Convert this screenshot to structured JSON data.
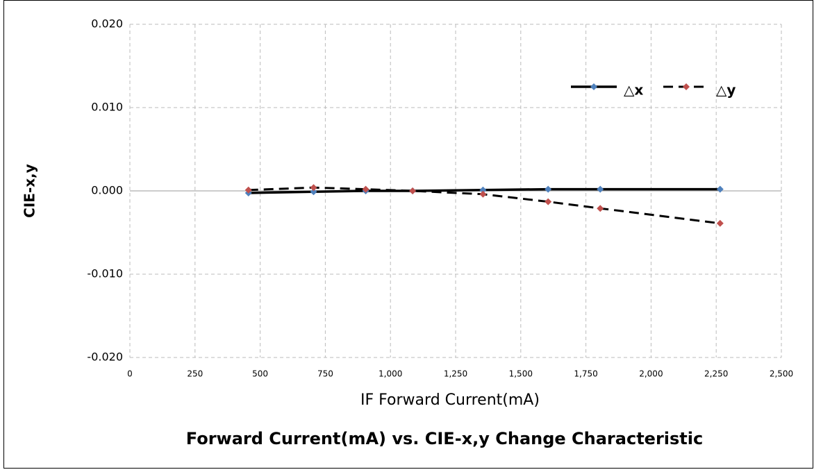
{
  "chart_data": {
    "type": "line",
    "title": "Forward Current(mA) vs. CIE-x,y Change Characteristic",
    "x_label": "IF Forward Current(mA)",
    "y_label": "CIE-x,y",
    "x": [
      455,
      705,
      905,
      1085,
      1355,
      1605,
      1805,
      2265
    ],
    "series": [
      {
        "name": "△x",
        "color": "#4f81bd",
        "line_color": "#000000",
        "line_style": "solid",
        "values": [
          -0.00025,
          -0.0001,
          0.0,
          0.0,
          0.0001,
          0.0002,
          0.0002,
          0.0002
        ]
      },
      {
        "name": "△y",
        "color": "#c0504d",
        "line_color": "#000000",
        "line_style": "dashed",
        "values": [
          0.0001,
          0.0004,
          0.0002,
          0.0,
          -0.0004,
          -0.0013,
          -0.0021,
          -0.0039
        ]
      }
    ],
    "xlim": [
      0,
      2500
    ],
    "xticks": [
      0,
      250,
      500,
      750,
      {
        "value": 1000,
        "label": "1,000"
      },
      {
        "value": 1250,
        "label": "1,250"
      },
      {
        "value": 1500,
        "label": "1,500"
      },
      {
        "value": 1750,
        "label": "1,750"
      },
      {
        "value": 2000,
        "label": "2,000"
      },
      {
        "value": 2250,
        "label": "2,250"
      },
      {
        "value": 2500,
        "label": "2,500"
      }
    ],
    "ylim": [
      -0.02,
      0.02
    ],
    "yticks": [
      {
        "value": -0.02,
        "label": "-0.020"
      },
      {
        "value": -0.01,
        "label": "-0.010"
      },
      {
        "value": 0,
        "label": "0.000"
      },
      {
        "value": 0.01,
        "label": "0.010"
      },
      {
        "value": 0.02,
        "label": "0.020"
      }
    ],
    "grid": true,
    "legend": "top-right"
  }
}
